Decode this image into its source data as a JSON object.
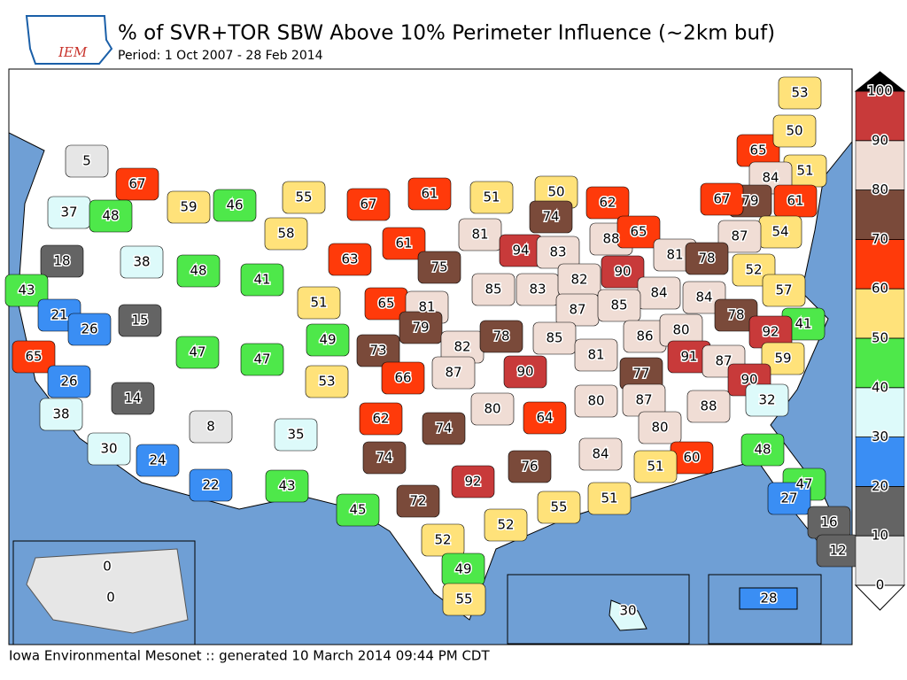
{
  "header": {
    "logo_text": "IEM",
    "title": "% of SVR+TOR SBW Above 10% Perimeter Influence (~2km buf)",
    "subtitle": "Period: 1 Oct 2007 - 28 Feb 2014"
  },
  "footer": "Iowa Environmental Mesonet :: generated 10 March 2014 09:44 PM CDT",
  "colorbar": {
    "levels": [
      0,
      10,
      20,
      30,
      40,
      50,
      60,
      70,
      80,
      90,
      100
    ],
    "colors": [
      "#e6e6e6",
      "#646464",
      "#3a8ef4",
      "#ddfafa",
      "#4ee84a",
      "#ffe27a",
      "#ff3a0a",
      "#7a4a3a",
      "#f0ddd5",
      "#c83a3a"
    ]
  },
  "map": {
    "labels": [
      5,
      67,
      37,
      48,
      59,
      46,
      55,
      67,
      61,
      51,
      50,
      74,
      62,
      65,
      53,
      50,
      51,
      84,
      79,
      67,
      61,
      54,
      87,
      18,
      38,
      58,
      81,
      94,
      83,
      88,
      65,
      81,
      78,
      52,
      57,
      43,
      21,
      26,
      15,
      48,
      41,
      63,
      61,
      75,
      85,
      83,
      82,
      90,
      84,
      84,
      51,
      65,
      81,
      87,
      85,
      78,
      41,
      92,
      47,
      47,
      49,
      79,
      73,
      82,
      78,
      85,
      86,
      80,
      59,
      65,
      26,
      53,
      66,
      87,
      90,
      81,
      77,
      91,
      87,
      90,
      38,
      14,
      8,
      35,
      62,
      80,
      64,
      80,
      87,
      88,
      32,
      74,
      80,
      30,
      24,
      22,
      74,
      84,
      76,
      60,
      48,
      51,
      43,
      47,
      92,
      72,
      27,
      45,
      55,
      51,
      16,
      52,
      52,
      12,
      49,
      55
    ],
    "alaska": [
      0,
      0
    ],
    "hawaii": [
      30
    ],
    "puerto_rico": [
      28
    ]
  }
}
